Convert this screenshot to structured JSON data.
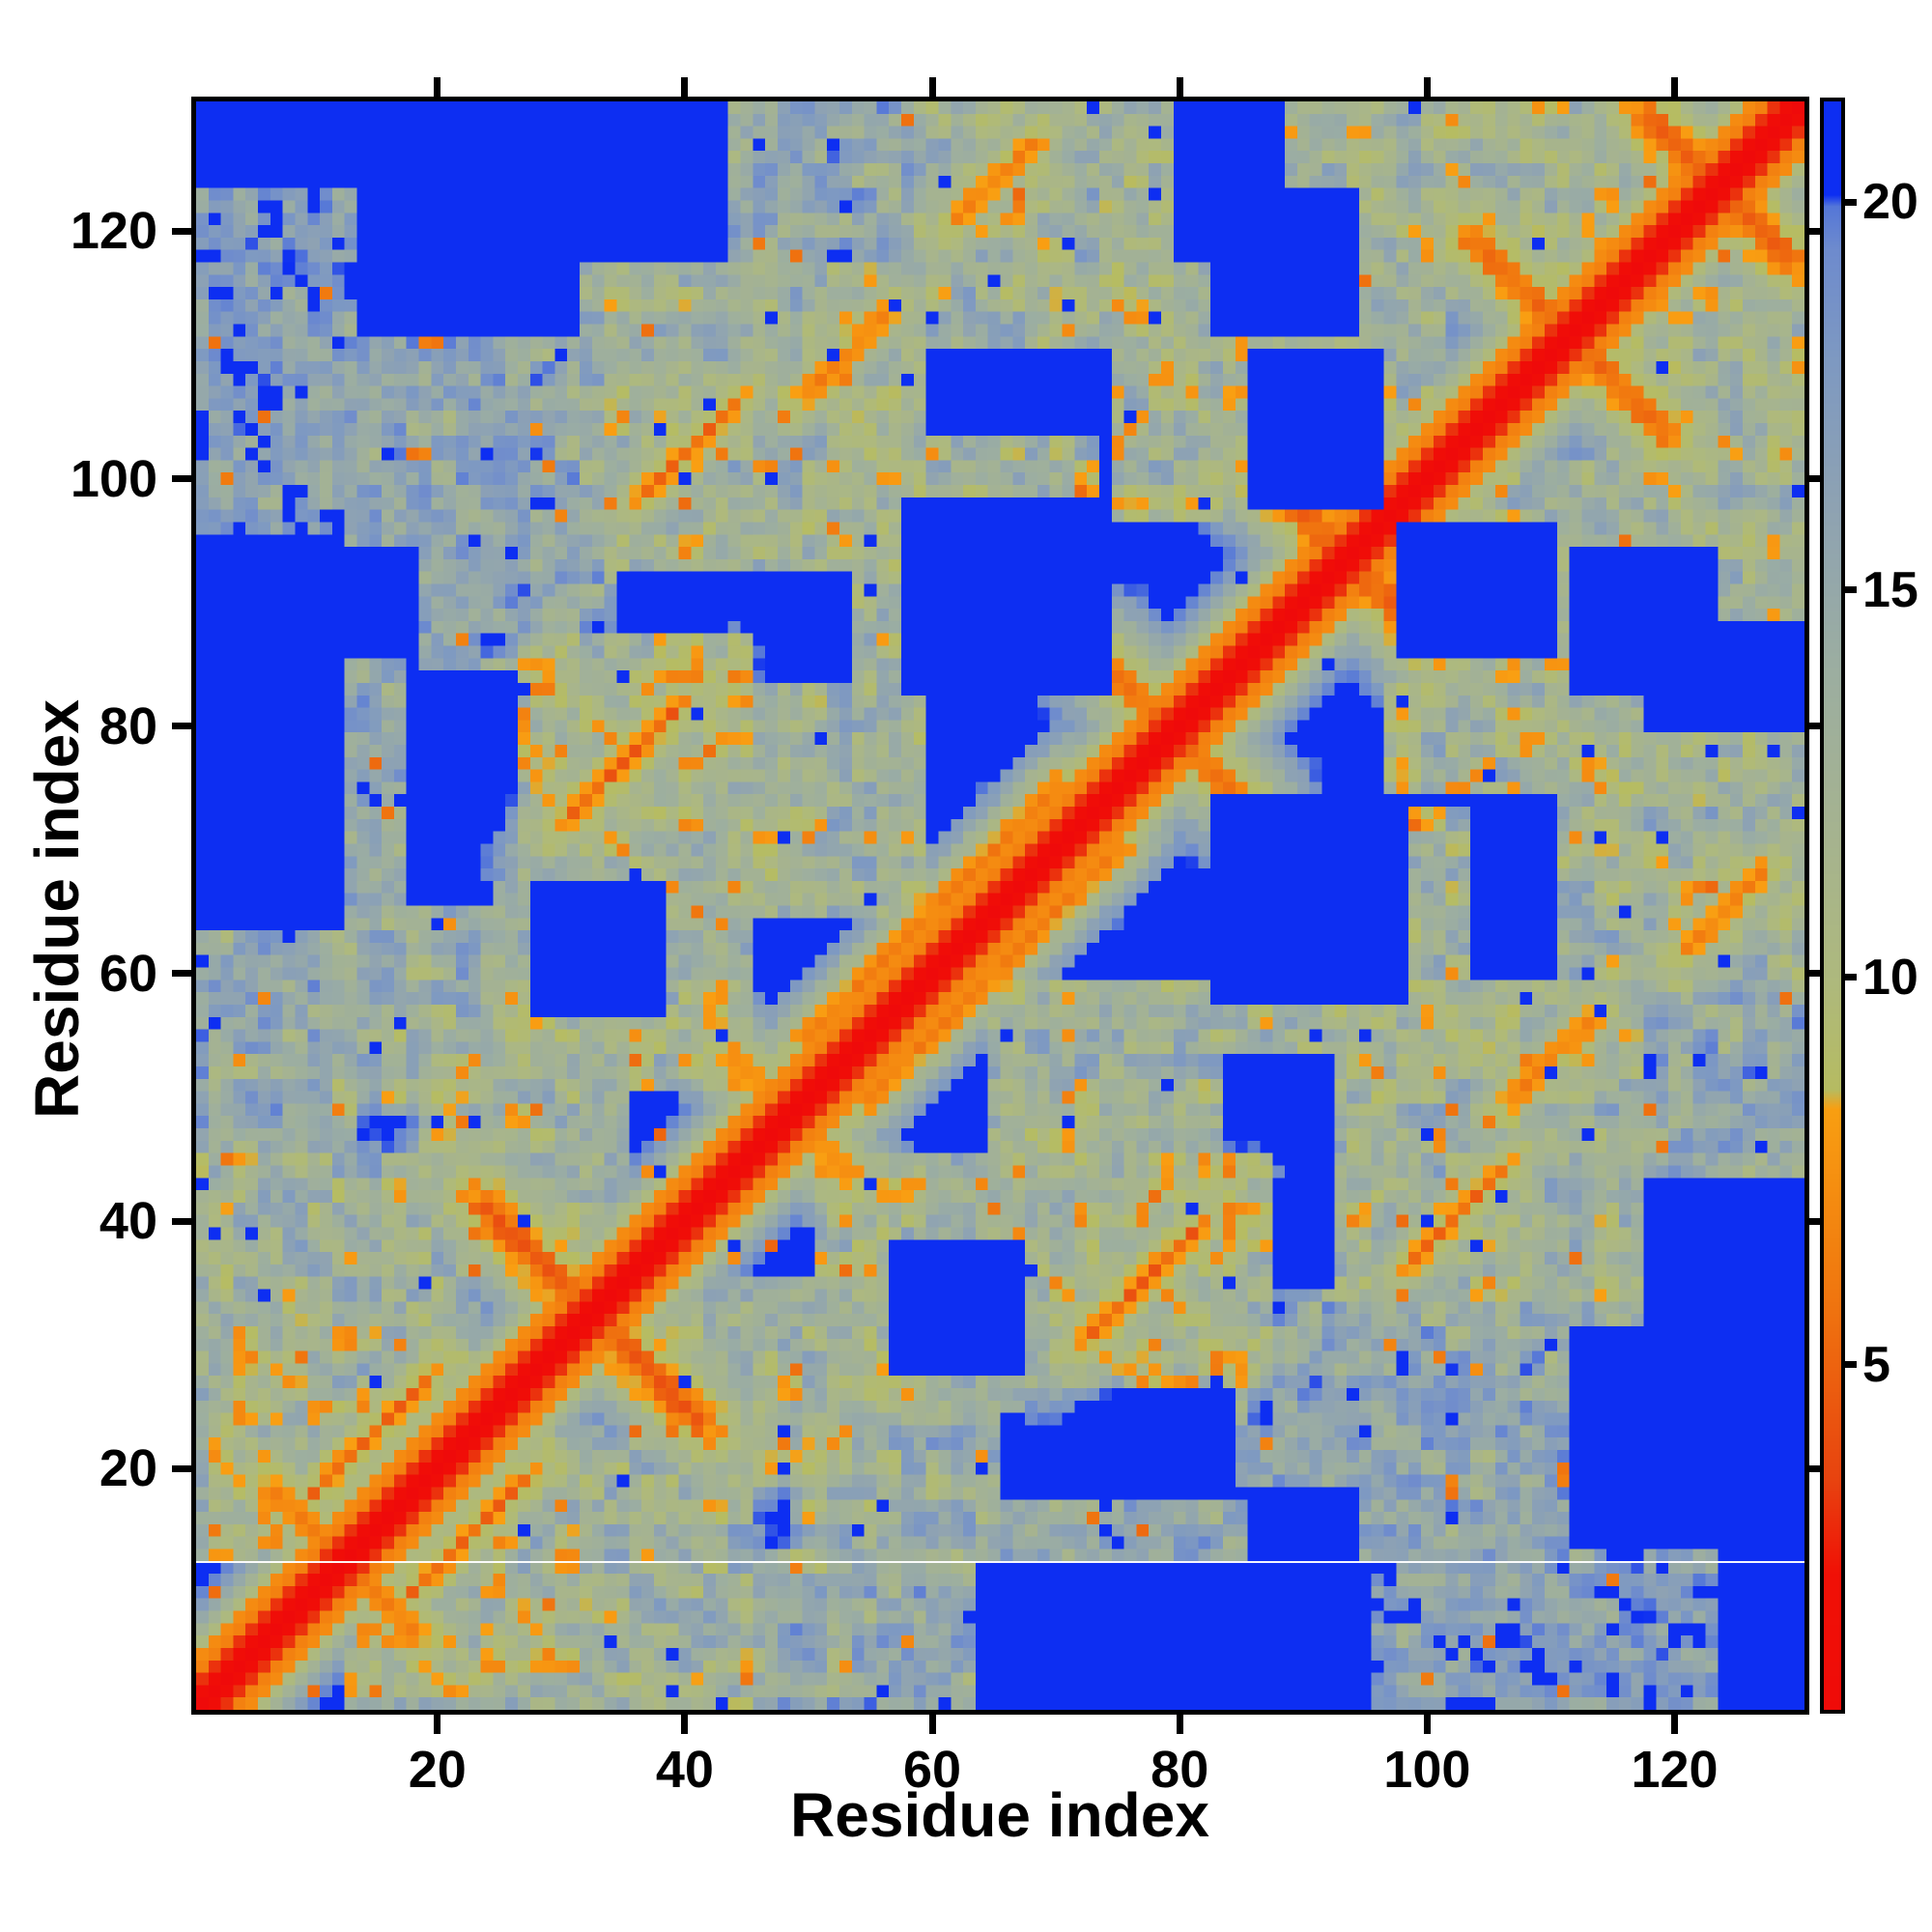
{
  "figure": {
    "background": "#ffffff",
    "frame_color": "#000000"
  },
  "chart_data": {
    "type": "heatmap",
    "title": "",
    "xlabel": "Residue index",
    "ylabel": "Residue index",
    "n_residues": 130,
    "x_range": [
      1,
      130
    ],
    "y_range": [
      1,
      130
    ],
    "axis_ticks": [
      20,
      40,
      60,
      80,
      100,
      120
    ],
    "grid": false,
    "colorbar": {
      "position": "right",
      "vmin": 0.55,
      "vmax": 21.3,
      "ticks": [
        5,
        10,
        15,
        20
      ]
    },
    "colormap_stops": [
      [
        0.0,
        "#ef0a0a"
      ],
      [
        2.3,
        "#f11106"
      ],
      [
        3.5,
        "#e84310"
      ],
      [
        5.8,
        "#f0750f"
      ],
      [
        8.3,
        "#f99f12"
      ],
      [
        8.55,
        "#b6bc62"
      ],
      [
        10.0,
        "#aeb97e"
      ],
      [
        12.0,
        "#a5b391"
      ],
      [
        14.0,
        "#9caea1"
      ],
      [
        16.0,
        "#8fa3b2"
      ],
      [
        18.0,
        "#7e99c2"
      ],
      [
        19.4,
        "#6e8bce"
      ],
      [
        19.95,
        "#5577d8"
      ],
      [
        20.1,
        "#0d2ef2"
      ],
      [
        25.0,
        "#0d2ef2"
      ]
    ],
    "diagonal": {
      "description": "self-distance ~0 along i=j",
      "red_band_halfwidth": 1,
      "orange_halfwidth": 3,
      "green_halo_halfwidth": 9,
      "wide_halo_segments": [
        [
          44,
          78
        ],
        [
          100,
          130
        ]
      ]
    },
    "contact_streaks": [
      {
        "orientation": "antiparallel",
        "i_range": [
          24,
          41
        ],
        "pair_sum": 65,
        "min_distance": 4.3
      },
      {
        "orientation": "antiparallel",
        "i_range": [
          7,
          17
        ],
        "pair_sum": 25,
        "min_distance": 6.0
      },
      {
        "orientation": "parallel",
        "i_range": [
          10,
          19
        ],
        "offset": -8,
        "min_distance": 5.6
      },
      {
        "orientation": "antiparallel",
        "i_range": [
          23,
          30
        ],
        "pair_sum": 31,
        "min_distance": 5.4
      },
      {
        "orientation": "parallel",
        "i_range": [
          31,
          39
        ],
        "offset": 42,
        "min_distance": 5.4
      },
      {
        "orientation": "antiparallel",
        "i_range": [
          74,
          85
        ],
        "pair_sum": 159,
        "min_distance": 5.4
      },
      {
        "orientation": "parallel",
        "i_range": [
          50,
          70
        ],
        "offset": 5,
        "min_distance": 6.0
      },
      {
        "orientation": "antiparallel",
        "i_range": [
          87,
          100
        ],
        "pair_sum": 187,
        "min_distance": 4.6
      },
      {
        "orientation": "antiparallel",
        "i_range": [
          104,
          119
        ],
        "pair_sum": 223,
        "min_distance": 5.0
      },
      {
        "orientation": "antiparallel",
        "i_range": [
          118,
          129
        ],
        "pair_sum": 247,
        "min_distance": 4.5
      },
      {
        "orientation": "parallel",
        "i_range": [
          37,
          44
        ],
        "offset": 62,
        "min_distance": 5.8
      },
      {
        "orientation": "parallel",
        "i_range": [
          50,
          56
        ],
        "offset": 57,
        "min_distance": 6.2
      },
      {
        "orientation": "parallel",
        "i_range": [
          28,
          34
        ],
        "offset": 29,
        "min_distance": 6.2
      },
      {
        "orientation": "parallel",
        "i_range": [
          62,
          68
        ],
        "offset": 59,
        "min_distance": 6.2
      },
      {
        "orientation": "antiparallel",
        "i_range": [
          44,
          53
        ],
        "pair_sum": 97,
        "min_distance": 6.4
      }
    ],
    "contact_blobs": [
      [
        1,
        22,
        24,
        44,
        13
      ],
      [
        1,
        14,
        40,
        56,
        15
      ],
      [
        12,
        24,
        50,
        64,
        13.5
      ],
      [
        26,
        44,
        52,
        66,
        12.5
      ],
      [
        28,
        44,
        68,
        86,
        11.5
      ],
      [
        1,
        12,
        14,
        30,
        12
      ],
      [
        55,
        72,
        84,
        102,
        12.5
      ],
      [
        76,
        86,
        98,
        116,
        12
      ],
      [
        86,
        100,
        100,
        118,
        12.5
      ],
      [
        33,
        58,
        94,
        116,
        13
      ],
      [
        60,
        78,
        112,
        130,
        13
      ],
      [
        90,
        102,
        116,
        130,
        12
      ],
      [
        1,
        16,
        57,
        84,
        15.5
      ],
      [
        1,
        8,
        56,
        63,
        14.5
      ],
      [
        2,
        12,
        96,
        122,
        17
      ],
      [
        14,
        30,
        96,
        110,
        15.5
      ],
      [
        45,
        60,
        118,
        130,
        15.5
      ],
      [
        20,
        34,
        40,
        52,
        12.5
      ],
      [
        45,
        58,
        66,
        82,
        13
      ],
      [
        100,
        117,
        118,
        130,
        12.5
      ],
      [
        20,
        33,
        86,
        96,
        16
      ]
    ],
    "blue_holes": [
      [
        58,
        74,
        83,
        98
      ],
      [
        83,
        94,
        112,
        123
      ],
      [
        86,
        96,
        98,
        110
      ],
      [
        1,
        12,
        64,
        95
      ],
      [
        28,
        38,
        57,
        67
      ]
    ],
    "noise": {
      "seed": 7,
      "coarse_amp": 7.0,
      "fine_amp": 4.5,
      "orange_speckle_rate": 0.012,
      "blue_speckle_rate": 0.015
    },
    "artifact_line_row": 12
  }
}
